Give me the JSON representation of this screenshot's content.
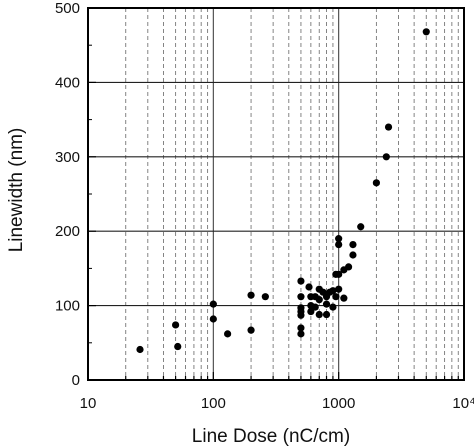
{
  "chart_data": {
    "type": "scatter",
    "x_scale": "log",
    "xlim": [
      10,
      10000
    ],
    "ylim": [
      0,
      500
    ],
    "xlabel": "Line Dose (nC/cm)",
    "ylabel": "Linewidth (nm)",
    "x_ticks": [
      10,
      100,
      1000,
      10000
    ],
    "x_tick_labels": [
      "10",
      "100",
      "1000",
      "10⁴"
    ],
    "y_ticks": [
      0,
      100,
      200,
      300,
      400,
      500
    ],
    "y_tick_labels": [
      "0",
      "100",
      "200",
      "300",
      "400",
      "500"
    ],
    "grid": true,
    "marker_color": "#000000",
    "series": [
      {
        "points": [
          [
            26,
            41
          ],
          [
            50,
            74
          ],
          [
            52,
            45
          ],
          [
            100,
            102
          ],
          [
            100,
            82
          ],
          [
            130,
            62
          ],
          [
            200,
            114
          ],
          [
            200,
            67
          ],
          [
            260,
            112
          ],
          [
            500,
            133
          ],
          [
            500,
            112
          ],
          [
            500,
            97
          ],
          [
            500,
            92
          ],
          [
            500,
            87
          ],
          [
            500,
            70
          ],
          [
            500,
            62
          ],
          [
            580,
            125
          ],
          [
            600,
            112
          ],
          [
            600,
            100
          ],
          [
            600,
            92
          ],
          [
            650,
            112
          ],
          [
            650,
            98
          ],
          [
            700,
            122
          ],
          [
            700,
            108
          ],
          [
            700,
            88
          ],
          [
            750,
            118
          ],
          [
            800,
            112
          ],
          [
            800,
            102
          ],
          [
            800,
            88
          ],
          [
            850,
            118
          ],
          [
            900,
            120
          ],
          [
            900,
            98
          ],
          [
            950,
            142
          ],
          [
            950,
            112
          ],
          [
            1000,
            190
          ],
          [
            1000,
            182
          ],
          [
            1000,
            142
          ],
          [
            1000,
            122
          ],
          [
            1100,
            148
          ],
          [
            1100,
            110
          ],
          [
            1200,
            152
          ],
          [
            1300,
            182
          ],
          [
            1300,
            168
          ],
          [
            1500,
            206
          ],
          [
            2000,
            265
          ],
          [
            2400,
            300
          ],
          [
            2500,
            340
          ],
          [
            5000,
            468
          ]
        ]
      }
    ]
  }
}
